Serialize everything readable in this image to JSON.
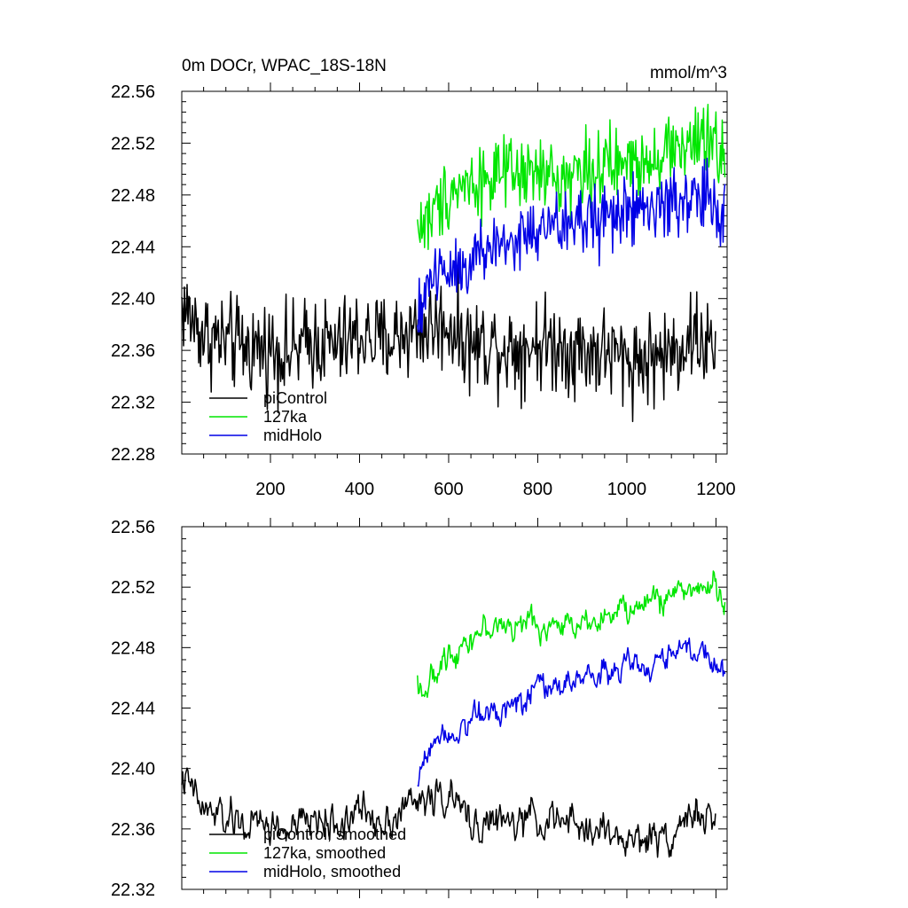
{
  "chart_data": [
    {
      "type": "line",
      "title": "0m DOCr, WPAC_18S-18N",
      "units": "mmol/m^3",
      "xlim": [
        1,
        1225
      ],
      "ylim": [
        22.28,
        22.56
      ],
      "xticks": [
        200,
        400,
        600,
        800,
        1000,
        1200
      ],
      "xtick_labels": [
        "200",
        "400",
        "600",
        "800",
        "1000",
        "1200"
      ],
      "yticks": [
        22.28,
        22.32,
        22.36,
        22.4,
        22.44,
        22.48,
        22.52,
        22.56
      ],
      "ytick_labels": [
        "22.28",
        "22.32",
        "22.36",
        "22.40",
        "22.44",
        "22.48",
        "22.52",
        "22.56"
      ],
      "legend_position": "bottom-left",
      "grid": false,
      "series": [
        {
          "name": "piControl",
          "color": "#000000",
          "x": [
            1,
            50,
            100,
            150,
            200,
            250,
            300,
            350,
            400,
            450,
            500,
            550,
            600,
            650,
            700,
            750,
            800,
            850,
            900,
            950,
            1000,
            1050,
            1100,
            1150,
            1200
          ],
          "y": [
            22.395,
            22.372,
            22.366,
            22.362,
            22.362,
            22.358,
            22.368,
            22.362,
            22.372,
            22.366,
            22.374,
            22.378,
            22.381,
            22.364,
            22.365,
            22.362,
            22.366,
            22.364,
            22.36,
            22.359,
            22.352,
            22.354,
            22.358,
            22.372,
            22.358
          ],
          "noise": 0.018
        },
        {
          "name": "127ka",
          "color": "#00e600",
          "x": [
            530,
            560,
            600,
            650,
            700,
            750,
            800,
            850,
            900,
            950,
            1000,
            1050,
            1100,
            1150,
            1200,
            1220
          ],
          "y": [
            22.455,
            22.462,
            22.484,
            22.49,
            22.494,
            22.494,
            22.496,
            22.492,
            22.5,
            22.5,
            22.504,
            22.51,
            22.516,
            22.52,
            22.518,
            22.512
          ],
          "noise": 0.014
        },
        {
          "name": "midHolo",
          "color": "#0000e6",
          "x": [
            530,
            545,
            560,
            600,
            650,
            700,
            750,
            800,
            850,
            900,
            950,
            1000,
            1050,
            1100,
            1150,
            1200,
            1220
          ],
          "y": [
            22.372,
            22.405,
            22.418,
            22.424,
            22.43,
            22.44,
            22.445,
            22.452,
            22.455,
            22.46,
            22.464,
            22.466,
            22.468,
            22.474,
            22.478,
            22.474,
            22.458
          ],
          "noise": 0.014
        }
      ]
    },
    {
      "type": "line",
      "title": "",
      "xlim": [
        1,
        1225
      ],
      "ylim": [
        22.32,
        22.56
      ],
      "xticks": [
        200,
        400,
        600,
        800,
        1000,
        1200
      ],
      "yticks": [
        22.32,
        22.36,
        22.4,
        22.44,
        22.48,
        22.52,
        22.56
      ],
      "ytick_labels": [
        "22.32",
        "22.36",
        "22.40",
        "22.44",
        "22.48",
        "22.52",
        "22.56"
      ],
      "legend_position": "bottom-left",
      "grid": false,
      "series": [
        {
          "name": "piControl, smoothed",
          "color": "#000000",
          "x": [
            1,
            50,
            100,
            150,
            200,
            250,
            300,
            350,
            400,
            450,
            500,
            550,
            600,
            650,
            700,
            750,
            800,
            850,
            900,
            950,
            1000,
            1050,
            1100,
            1150,
            1200
          ],
          "y": [
            22.395,
            22.372,
            22.366,
            22.362,
            22.362,
            22.358,
            22.368,
            22.362,
            22.372,
            22.366,
            22.374,
            22.38,
            22.382,
            22.364,
            22.365,
            22.362,
            22.368,
            22.364,
            22.36,
            22.359,
            22.352,
            22.354,
            22.358,
            22.372,
            22.36
          ],
          "noise": 0.008
        },
        {
          "name": "127ka, smoothed",
          "color": "#00e600",
          "x": [
            530,
            550,
            575,
            600,
            650,
            700,
            750,
            800,
            850,
            900,
            950,
            1000,
            1050,
            1100,
            1150,
            1200,
            1220
          ],
          "y": [
            22.458,
            22.452,
            22.462,
            22.476,
            22.488,
            22.494,
            22.494,
            22.496,
            22.492,
            22.5,
            22.5,
            22.504,
            22.51,
            22.516,
            22.52,
            22.52,
            22.514
          ],
          "noise": 0.006
        },
        {
          "name": "midHolo, smoothed",
          "color": "#0000e6",
          "x": [
            530,
            545,
            560,
            600,
            650,
            700,
            750,
            800,
            850,
            900,
            950,
            1000,
            1050,
            1100,
            1150,
            1200,
            1220
          ],
          "y": [
            22.385,
            22.41,
            22.418,
            22.425,
            22.432,
            22.44,
            22.445,
            22.452,
            22.455,
            22.46,
            22.464,
            22.466,
            22.468,
            22.474,
            22.48,
            22.474,
            22.458
          ],
          "noise": 0.006
        }
      ]
    }
  ]
}
